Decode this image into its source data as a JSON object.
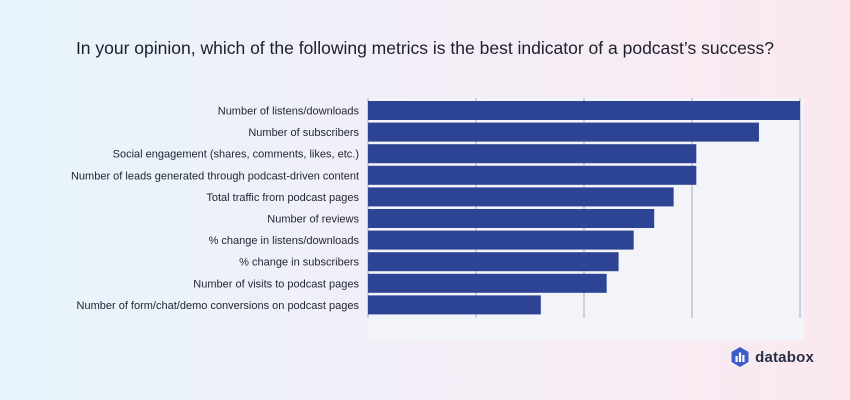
{
  "title": "In your opinion, which of the following metrics is the best indicator of a podcast’s success?",
  "brand": {
    "name": "databox"
  },
  "colors": {
    "bar": "#2d4494",
    "grid": "#a7a9bd",
    "plot_bg": "#f3f3fa",
    "logo": "#3c5cc7"
  },
  "chart_data": {
    "type": "bar",
    "orientation": "horizontal",
    "title": "In your opinion, which of the following metrics is the best indicator of a podcast’s success?",
    "categories": [
      "Number of listens/downloads",
      "Number of subscribers",
      "Social engagement (shares, comments, likes, etc.)",
      "Number of leads generated through podcast-driven content",
      "Total traffic from podcast pages",
      "Number of reviews",
      "% change in listens/downloads",
      "% change in subscribers",
      "Number of visits to podcast pages",
      "Number of form/chat/demo conversions on podcast pages"
    ],
    "values": [
      40,
      36.2,
      30.4,
      30.4,
      28.3,
      26.5,
      24.6,
      23.2,
      22.1,
      16
    ],
    "xlim": [
      0,
      40
    ],
    "grid": true,
    "xlabel": "",
    "ylabel": ""
  }
}
